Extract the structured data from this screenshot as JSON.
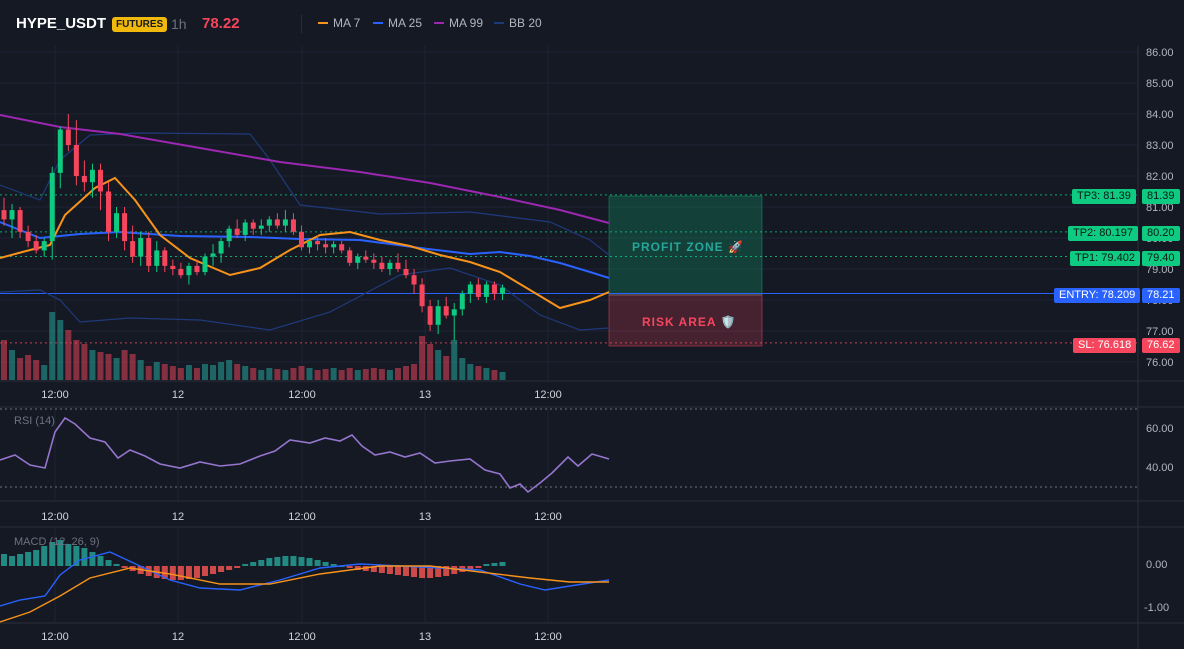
{
  "header": {
    "symbol": "HYPE_USDT",
    "badge": "FUTURES",
    "timeframe": "1h",
    "last_price": "78.22"
  },
  "legend": [
    {
      "name": "MA 7",
      "color": "#f7931a"
    },
    {
      "name": "MA 25",
      "color": "#2962ff"
    },
    {
      "name": "MA 99",
      "color": "#9c27b0"
    },
    {
      "name": "BB 20",
      "color": "#1e3a7b"
    }
  ],
  "price_axis": [
    "86.00",
    "85.00",
    "84.00",
    "83.00",
    "82.00",
    "81.00",
    "80.00",
    "79.00",
    "78.00",
    "77.00",
    "76.00"
  ],
  "time_axis": [
    "12:00",
    "12",
    "12:00",
    "13",
    "12:00"
  ],
  "levels": {
    "tp3": {
      "line": "TP3: 81.39",
      "price": "81.39"
    },
    "tp2": {
      "line": "TP2: 80.197",
      "price": "80.20"
    },
    "tp1": {
      "line": "TP1: 79.402",
      "price": "79.40"
    },
    "entry": {
      "line": "ENTRY: 78.209",
      "price": "78.21"
    },
    "sl": {
      "line": "SL: 76.618",
      "price": "76.62"
    }
  },
  "zones": {
    "profit": "PROFIT ZONE 🚀",
    "risk": "RISK AREA 🛡️"
  },
  "rsi": {
    "title": "RSI (14)",
    "axis": [
      "60.00",
      "40.00"
    ]
  },
  "macd": {
    "title": "MACD (12, 26, 9)",
    "axis": [
      "0.00",
      "-1.00"
    ]
  },
  "colors": {
    "up": "#26a69a",
    "up_bright": "#0ecb81",
    "down": "#f6465d",
    "bg": "#151924",
    "grid": "#1f2433",
    "entry": "#2962ff"
  }
}
